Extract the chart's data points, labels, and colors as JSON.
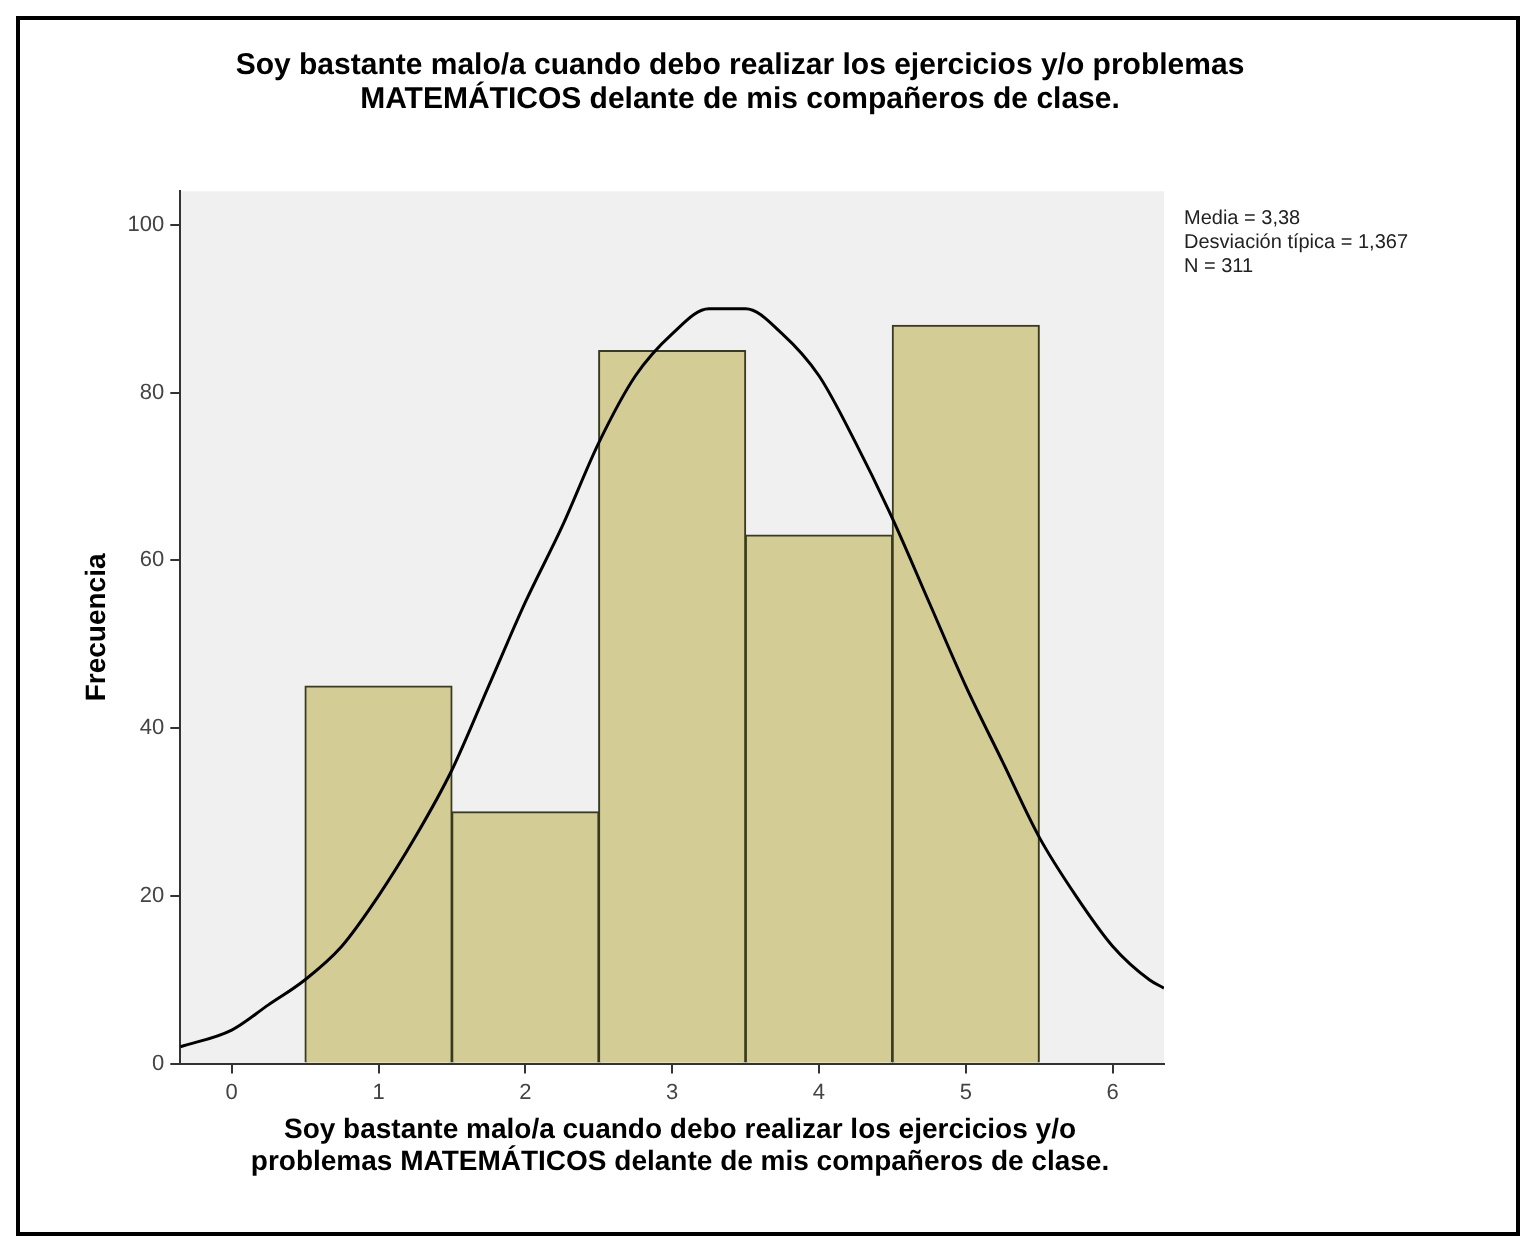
{
  "chart_data": {
    "type": "histogram",
    "title": "Soy bastante malo/a cuando debo realizar los ejercicios y/o problemas MATEMÁTICOS delante de mis compañeros de clase.",
    "xlabel": "Soy bastante malo/a cuando debo realizar los ejercicios y/o problemas MATEMÁTICOS delante de mis compañeros de clase.",
    "ylabel": "Frecuencia",
    "bins": [
      0.5,
      1.5,
      2.5,
      3.5,
      4.5,
      5.5
    ],
    "values": [
      45,
      30,
      85,
      63,
      88
    ],
    "color": "#d3cc94",
    "series": [
      {
        "type": "line",
        "color": "#000000",
        "x": [
          -0.35,
          0,
          0.25,
          0.5,
          0.75,
          1,
          1.25,
          1.5,
          1.75,
          2,
          2.25,
          2.5,
          2.75,
          3,
          3.25,
          3.5,
          3.75,
          4,
          4.25,
          4.5,
          4.75,
          5,
          5.25,
          5.5,
          5.75,
          6,
          6.25,
          6.35
        ],
        "values": [
          2,
          4,
          7,
          10,
          14,
          20,
          27,
          35,
          45,
          55,
          64,
          74,
          82,
          87,
          90,
          90,
          87,
          82,
          74,
          65,
          55,
          45,
          36,
          27,
          20,
          14,
          10,
          9
        ]
      }
    ],
    "xlim": [
      -0.35,
      6.35
    ],
    "xticks": [
      0,
      1,
      2,
      3,
      4,
      5,
      6
    ],
    "ylim": [
      0,
      104
    ],
    "yticks": [
      0,
      20,
      40,
      60,
      80,
      100
    ],
    "grid": false,
    "legend": false,
    "marker": "none",
    "line_style": "solid",
    "annotations": [
      "Media = 3,38",
      "Desviación típica = 1,367",
      "N = 311"
    ]
  }
}
